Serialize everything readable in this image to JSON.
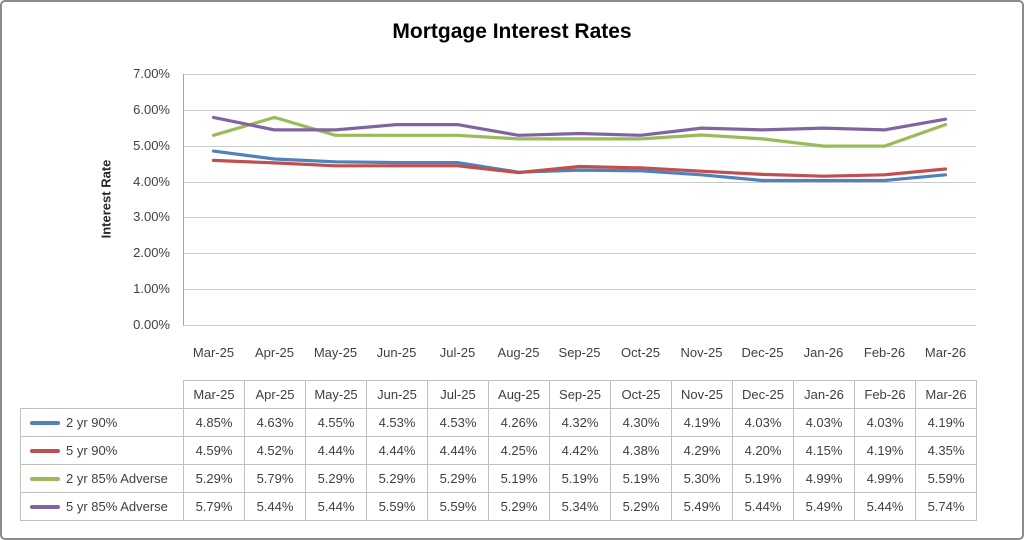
{
  "title": "Mortgage Interest Rates",
  "y_axis_title": "Interest Rate",
  "chart_data": {
    "type": "line",
    "title": "Mortgage Interest Rates",
    "ylabel": "Interest Rate",
    "xlabel": "",
    "ylim": [
      0,
      7
    ],
    "ytick_step": 1,
    "ytick_format": "0.00%",
    "grid": true,
    "legend_position": "table-left",
    "categories": [
      "Mar-25",
      "Apr-25",
      "May-25",
      "Jun-25",
      "Jul-25",
      "Aug-25",
      "Sep-25",
      "Oct-25",
      "Nov-25",
      "Dec-25",
      "Jan-26",
      "Feb-26",
      "Mar-26"
    ],
    "series": [
      {
        "name": "2 yr 90%",
        "color": "#4F81BD",
        "values": [
          4.85,
          4.63,
          4.55,
          4.53,
          4.53,
          4.26,
          4.32,
          4.3,
          4.19,
          4.03,
          4.03,
          4.03,
          4.19
        ]
      },
      {
        "name": "5 yr 90%",
        "color": "#C0504D",
        "values": [
          4.59,
          4.52,
          4.44,
          4.44,
          4.44,
          4.25,
          4.42,
          4.38,
          4.29,
          4.2,
          4.15,
          4.19,
          4.35
        ]
      },
      {
        "name": "2 yr 85% Adverse",
        "color": "#9BBB59",
        "values": [
          5.29,
          5.79,
          5.29,
          5.29,
          5.29,
          5.19,
          5.19,
          5.19,
          5.3,
          5.19,
          4.99,
          4.99,
          5.59
        ]
      },
      {
        "name": "5 yr 85% Adverse",
        "color": "#8064A2",
        "values": [
          5.79,
          5.44,
          5.44,
          5.59,
          5.59,
          5.29,
          5.34,
          5.29,
          5.49,
          5.44,
          5.49,
          5.44,
          5.74
        ]
      }
    ]
  },
  "colors": {
    "gridline": "#C9C9C9",
    "axis_line": "#A6A6A6",
    "table_border": "#BFBFBF",
    "text": "#3F3F3F",
    "frame_border": "#8C8C8C"
  }
}
